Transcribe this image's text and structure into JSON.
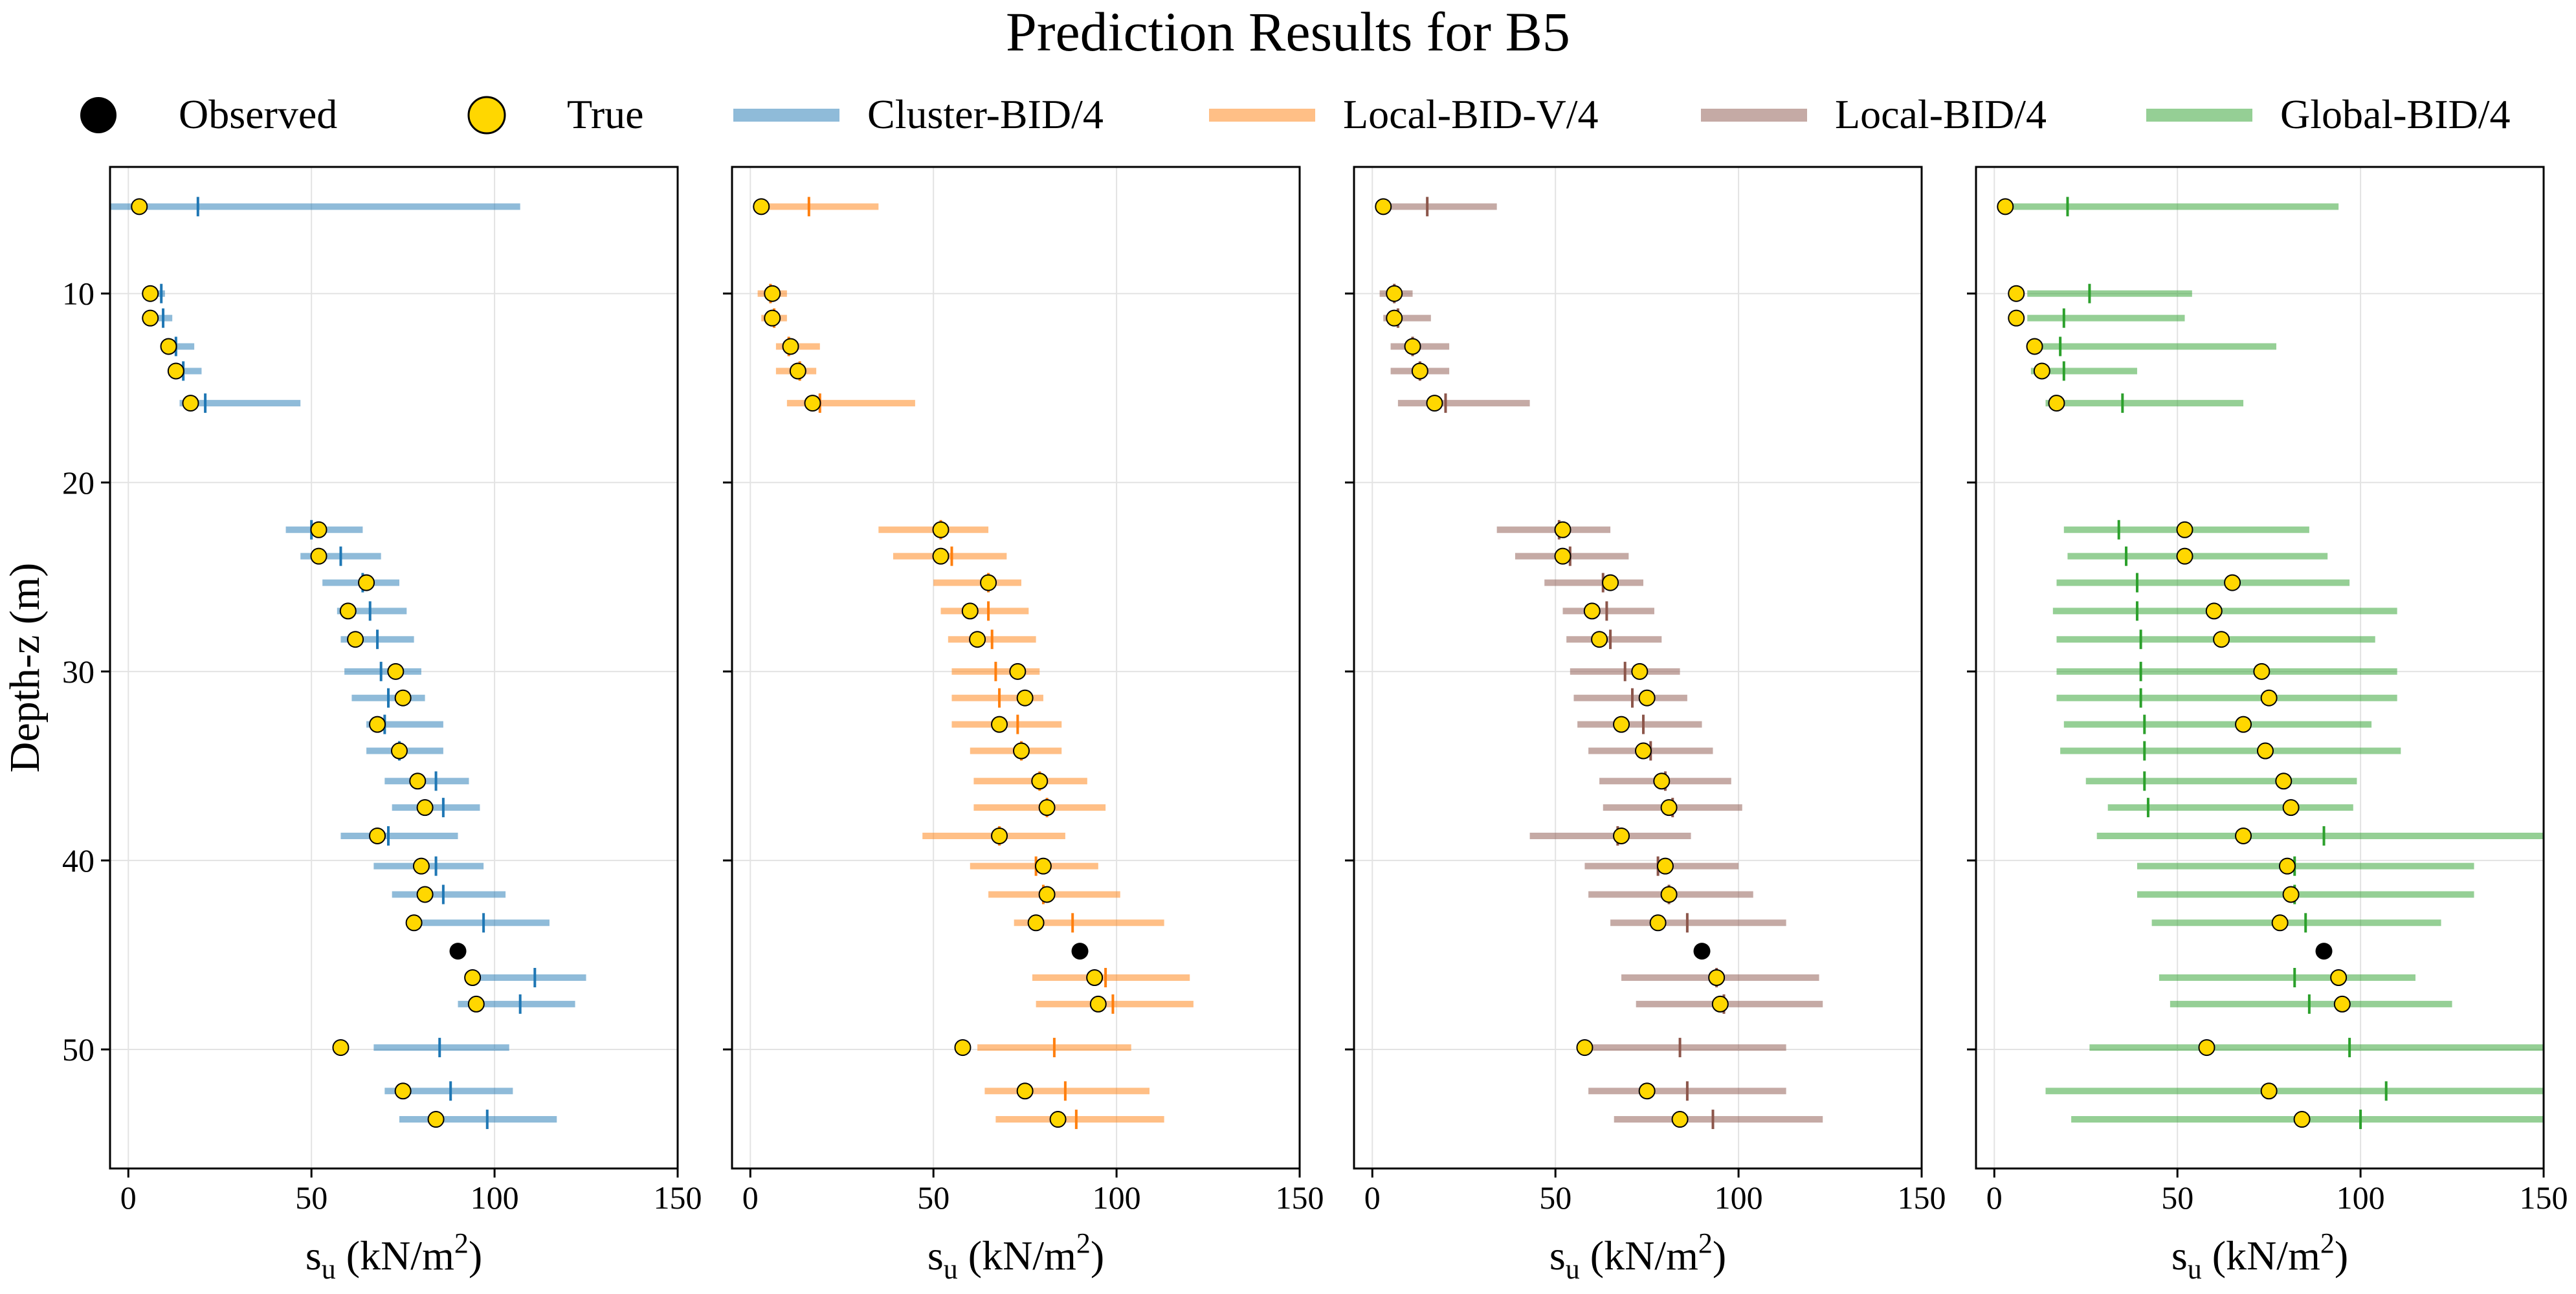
{
  "chart_data": {
    "type": "scatter",
    "title": "Prediction Results for B5",
    "ylabel": "Depth-z (m)",
    "xlabel_base": "s",
    "xlabel_sub": "u",
    "xlabel_unit_open": "(kN/m",
    "xlabel_sup": "2",
    "xlabel_unit_close": ")",
    "xlim": [
      -5,
      150
    ],
    "ylim": [
      56.3,
      3.3
    ],
    "x_ticks": [
      0,
      50,
      100,
      150
    ],
    "y_ticks": [
      10,
      20,
      30,
      40,
      50
    ],
    "grid": true,
    "legend": [
      {
        "label": "Observed",
        "kind": "marker",
        "color": "#000000"
      },
      {
        "label": "True",
        "kind": "marker",
        "color": "#ffd700"
      },
      {
        "label": "Cluster-BID/4",
        "kind": "line",
        "color": "#1f77b4"
      },
      {
        "label": "Local-BID-V/4",
        "kind": "line",
        "color": "#ff7f0e"
      },
      {
        "label": "Local-BID/4",
        "kind": "line",
        "color": "#8c564b"
      },
      {
        "label": "Global-BID/4",
        "kind": "line",
        "color": "#2ca02c"
      }
    ],
    "true_values": [
      {
        "z": 5.4,
        "su": 3
      },
      {
        "z": 10.0,
        "su": 6
      },
      {
        "z": 11.3,
        "su": 6
      },
      {
        "z": 12.8,
        "su": 11
      },
      {
        "z": 14.1,
        "su": 13
      },
      {
        "z": 15.8,
        "su": 17
      },
      {
        "z": 22.5,
        "su": 52
      },
      {
        "z": 23.9,
        "su": 52
      },
      {
        "z": 25.3,
        "su": 65
      },
      {
        "z": 26.8,
        "su": 60
      },
      {
        "z": 28.3,
        "su": 62
      },
      {
        "z": 30.0,
        "su": 73
      },
      {
        "z": 31.4,
        "su": 75
      },
      {
        "z": 32.8,
        "su": 68
      },
      {
        "z": 34.2,
        "su": 74
      },
      {
        "z": 35.8,
        "su": 79
      },
      {
        "z": 37.2,
        "su": 81
      },
      {
        "z": 38.7,
        "su": 68
      },
      {
        "z": 40.3,
        "su": 80
      },
      {
        "z": 41.8,
        "su": 81
      },
      {
        "z": 43.3,
        "su": 78
      },
      {
        "z": 46.2,
        "su": 94
      },
      {
        "z": 47.6,
        "su": 95
      },
      {
        "z": 49.9,
        "su": 58
      },
      {
        "z": 52.2,
        "su": 75
      },
      {
        "z": 53.7,
        "su": 84
      }
    ],
    "observed": [
      {
        "z": 44.8,
        "su": 90
      }
    ],
    "series": [
      {
        "name": "Cluster-BID/4",
        "color": "#1f77b4",
        "lower": [
          -5,
          7,
          7,
          9,
          11,
          14,
          43,
          47,
          53,
          57,
          58,
          59,
          61,
          65,
          65,
          70,
          72,
          58,
          67,
          72,
          79,
          92,
          90,
          67,
          70,
          74
        ],
        "median": [
          19,
          9,
          9.5,
          13,
          15,
          21,
          50,
          58,
          64,
          66,
          68,
          69,
          71,
          70,
          74,
          84,
          86,
          71,
          84,
          86,
          97,
          111,
          107,
          85,
          88,
          98
        ],
        "upper": [
          107,
          10,
          12,
          18,
          20,
          47,
          64,
          69,
          74,
          76,
          78,
          80,
          81,
          86,
          86,
          93,
          96,
          90,
          97,
          103,
          115,
          125,
          122,
          104,
          105,
          117
        ]
      },
      {
        "name": "Local-BID-V/4",
        "color": "#ff7f0e",
        "lower": [
          2,
          2,
          3,
          7,
          7,
          10,
          35,
          39,
          50,
          52,
          54,
          55,
          55,
          55,
          60,
          61,
          61,
          47,
          60,
          65,
          72,
          77,
          78,
          62,
          64,
          67
        ],
        "median": [
          16,
          5.5,
          6.5,
          10.5,
          13.5,
          19,
          52,
          55,
          65,
          65,
          66,
          67,
          68,
          73,
          74,
          79,
          81,
          68,
          78,
          80,
          88,
          97,
          99,
          83,
          86,
          89
        ],
        "upper": [
          35,
          10,
          10,
          19,
          18,
          45,
          65,
          70,
          74,
          76,
          78,
          79,
          80,
          85,
          85,
          92,
          97,
          86,
          95,
          101,
          113,
          120,
          121,
          104,
          109,
          113
        ]
      },
      {
        "name": "Local-BID/4",
        "color": "#8c564b",
        "lower": [
          2,
          2,
          3,
          5,
          5,
          7,
          34,
          39,
          47,
          52,
          53,
          54,
          55,
          56,
          59,
          62,
          63,
          43,
          58,
          59,
          65,
          68,
          72,
          58,
          59,
          66
        ],
        "median": [
          15,
          6,
          7,
          11,
          13,
          20,
          51,
          54,
          63,
          64,
          65,
          69,
          71,
          74,
          76,
          80,
          82,
          67,
          78,
          81,
          86,
          94,
          96,
          84,
          86,
          93
        ],
        "upper": [
          34,
          11,
          16,
          21,
          21,
          43,
          65,
          70,
          74,
          77,
          79,
          84,
          86,
          90,
          93,
          98,
          101,
          87,
          100,
          104,
          113,
          122,
          123,
          113,
          113,
          123
        ]
      },
      {
        "name": "Global-BID/4",
        "color": "#2ca02c",
        "lower": [
          5,
          9,
          9,
          10,
          10,
          14,
          19,
          20,
          17,
          16,
          17,
          17,
          17,
          19,
          18,
          25,
          31,
          28,
          39,
          39,
          43,
          45,
          48,
          26,
          14,
          21
        ],
        "median": [
          20,
          26,
          19,
          18,
          19,
          35,
          34,
          36,
          39,
          39,
          40,
          40,
          40,
          41,
          41,
          41,
          42,
          90,
          82,
          82,
          85,
          82,
          86,
          97,
          107,
          100
        ],
        "upper": [
          94,
          54,
          52,
          77,
          39,
          68,
          86,
          91,
          97,
          110,
          104,
          110,
          110,
          103,
          111,
          99,
          98,
          150,
          131,
          131,
          122,
          115,
          125,
          150,
          150,
          150
        ]
      }
    ]
  }
}
